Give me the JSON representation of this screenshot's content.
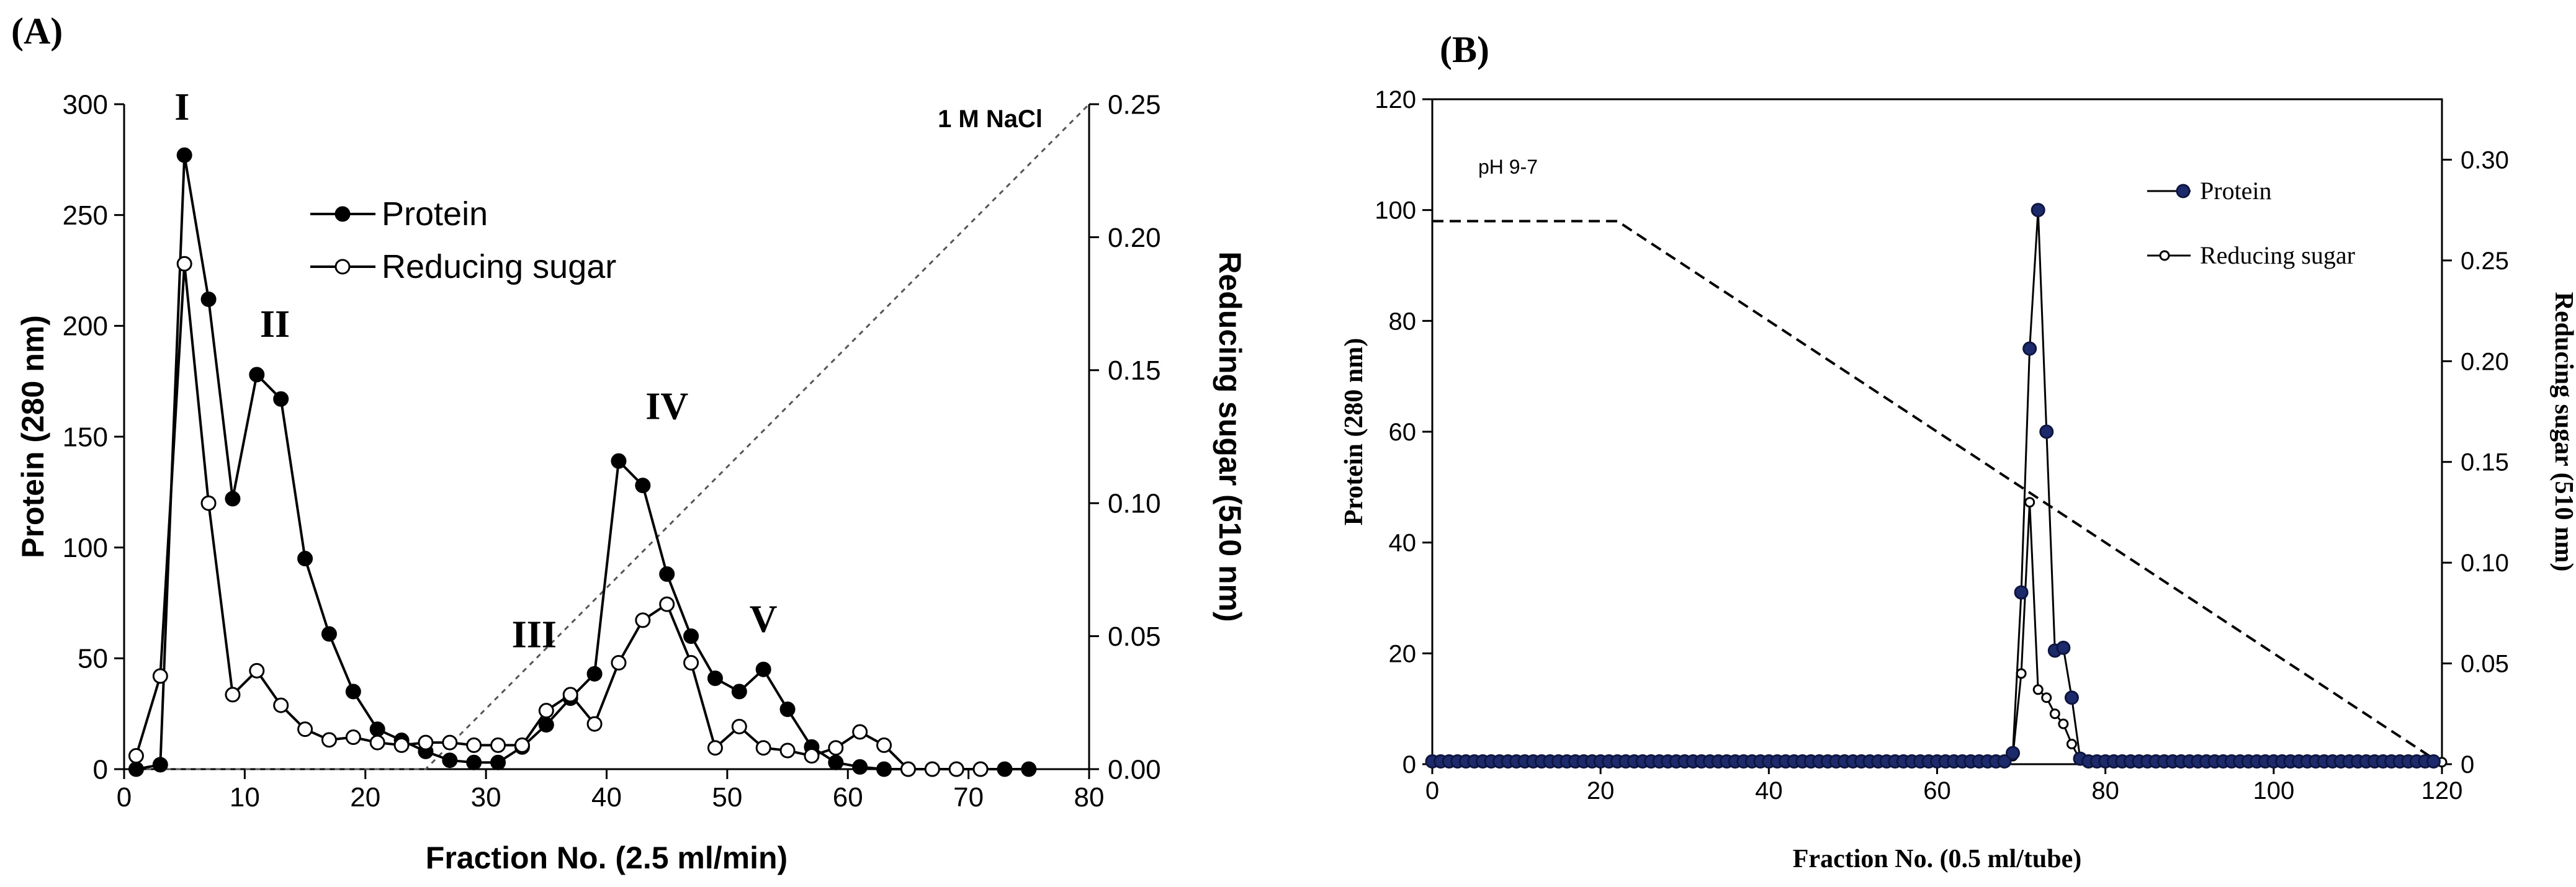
{
  "chart_data": [
    {
      "panel_label": "(A)",
      "type": "line",
      "xlabel": "Fraction No. (2.5 ml/min)",
      "ylabel": "Protein (280 nm)",
      "y2label": "Reducing sugar (510 nm)",
      "xlim": [
        0,
        80
      ],
      "ylim": [
        0,
        300
      ],
      "y2lim": [
        0,
        0.25
      ],
      "xticks": [
        "0",
        "10",
        "20",
        "30",
        "40",
        "50",
        "60",
        "70",
        "80"
      ],
      "yticks": [
        "0",
        "50",
        "100",
        "150",
        "200",
        "250",
        "300"
      ],
      "y2ticks": [
        "0.00",
        "0.05",
        "0.10",
        "0.15",
        "0.20",
        "0.25"
      ],
      "legend": [
        "Protein",
        "Reducing sugar"
      ],
      "gradient_label": "1 M NaCl",
      "series": [
        {
          "name": "Protein",
          "axis": "left",
          "marker": "filled-circle",
          "x": [
            1,
            3,
            5,
            7,
            9,
            11,
            13,
            15,
            17,
            19,
            21,
            23,
            25,
            27,
            29,
            31,
            33,
            35,
            37,
            39,
            41,
            43,
            45,
            47,
            49,
            51,
            53,
            55,
            57,
            59,
            61,
            63,
            65,
            67,
            69,
            71,
            73,
            75
          ],
          "values": [
            0,
            2,
            277,
            212,
            122,
            178,
            167,
            95,
            61,
            35,
            18,
            13,
            8,
            4,
            3,
            3,
            10,
            20,
            32,
            43,
            139,
            128,
            88,
            60,
            41,
            35,
            45,
            27,
            10,
            3,
            1,
            0,
            0,
            0,
            0,
            0,
            0,
            0
          ]
        },
        {
          "name": "Reducing sugar",
          "axis": "right",
          "marker": "open-circle",
          "x": [
            1,
            3,
            5,
            7,
            9,
            11,
            13,
            15,
            17,
            19,
            21,
            23,
            25,
            27,
            29,
            31,
            33,
            35,
            37,
            39,
            41,
            43,
            45,
            47,
            49,
            51,
            53,
            55,
            57,
            59,
            61,
            63,
            65,
            67,
            69,
            71
          ],
          "values": [
            0.005,
            0.035,
            0.19,
            0.1,
            0.028,
            0.037,
            0.024,
            0.015,
            0.011,
            0.012,
            0.01,
            0.009,
            0.01,
            0.01,
            0.009,
            0.009,
            0.009,
            0.022,
            0.028,
            0.017,
            0.04,
            0.056,
            0.062,
            0.04,
            0.008,
            0.016,
            0.008,
            0.007,
            0.005,
            0.008,
            0.014,
            0.009,
            0.0,
            0.0,
            0.0,
            0.0
          ]
        },
        {
          "name": "NaCl gradient",
          "axis": "right",
          "style": "dotted",
          "x": [
            1,
            25,
            80
          ],
          "values": [
            0.0,
            0.0,
            0.25
          ]
        }
      ],
      "peak_labels": [
        {
          "text": "I",
          "x": 4.8,
          "y": 293
        },
        {
          "text": "II",
          "x": 12.5,
          "y": 195
        },
        {
          "text": "III",
          "x": 34,
          "y": 55
        },
        {
          "text": "IV",
          "x": 45,
          "y": 158
        },
        {
          "text": "V",
          "x": 53,
          "y": 62
        }
      ]
    },
    {
      "panel_label": "(B)",
      "type": "line",
      "xlabel": "Fraction No. (0.5 ml/tube)",
      "ylabel": "Protein (280 nm)",
      "y2label": "Reducing sugar (510 nm)",
      "xlim": [
        0,
        120
      ],
      "ylim": [
        0,
        120
      ],
      "y2lim": [
        0,
        0.33
      ],
      "xticks": [
        "0",
        "20",
        "40",
        "60",
        "80",
        "100",
        "120"
      ],
      "yticks": [
        "0",
        "20",
        "40",
        "60",
        "80",
        "100",
        "120"
      ],
      "y2ticks": [
        "0",
        "0.05",
        "0.10",
        "0.15",
        "0.20",
        "0.25",
        "0.30"
      ],
      "legend": [
        "Protein",
        "Reducing sugar"
      ],
      "gradient_label": "pH 9-7",
      "series": [
        {
          "name": "Protein",
          "axis": "left",
          "marker": "filled-circle",
          "baseline": {
            "x_start": 0,
            "x_end": 119,
            "step": 1,
            "value": 0.5
          },
          "x": [
            69,
            70,
            71,
            72,
            73,
            74,
            75,
            76,
            77
          ],
          "values": [
            2,
            31,
            75,
            100,
            60,
            20.5,
            21,
            12,
            1
          ]
        },
        {
          "name": "Reducing sugar",
          "axis": "right",
          "marker": "open-circle",
          "baseline": {
            "x_start": 0,
            "x_end": 120,
            "step": 1,
            "value": 0.001
          },
          "x": [
            69,
            70,
            71,
            72,
            73,
            74,
            75,
            76,
            77
          ],
          "values": [
            0.004,
            0.045,
            0.13,
            0.037,
            0.033,
            0.025,
            0.02,
            0.01,
            0.002
          ]
        },
        {
          "name": "pH gradient",
          "axis": "left",
          "style": "dashed",
          "x": [
            0,
            22,
            119
          ],
          "values": [
            98,
            98,
            1
          ]
        }
      ]
    }
  ]
}
